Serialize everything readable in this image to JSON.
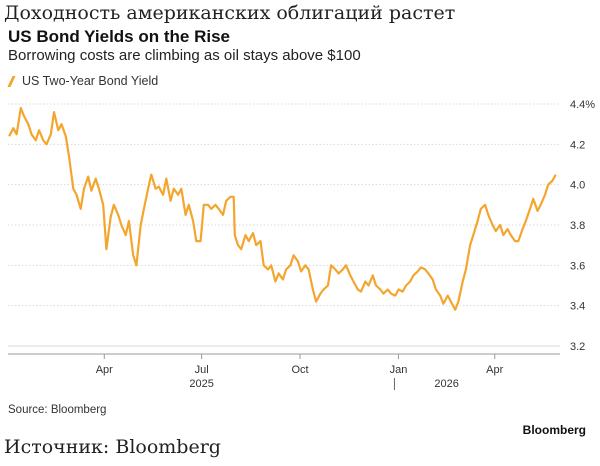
{
  "header": {
    "ru_title": "Доходность американских облигаций растет",
    "title": "US Bond Yields on the Rise",
    "subtitle": "Borrowing costs are climbing as oil stays above $100"
  },
  "footer": {
    "source": "Source: Bloomberg",
    "brand": "Bloomberg",
    "ru_source": "Источник: Bloomberg"
  },
  "colors": {
    "line": "#f4a52e",
    "grid": "#d9d9d9",
    "axis": "#999999"
  },
  "chart_data": {
    "type": "line",
    "title": "US Bond Yields on the Rise",
    "subtitle": "Borrowing costs are climbing as oil stays above $100",
    "xlabel": "",
    "ylabel": "",
    "ylim": [
      3.2,
      4.4
    ],
    "grid": true,
    "legend": "top-left",
    "y_ticks": [
      {
        "value": 4.4,
        "label": "4.4%"
      },
      {
        "value": 4.2,
        "label": "4.2"
      },
      {
        "value": 4.0,
        "label": "4.0"
      },
      {
        "value": 3.8,
        "label": "3.8"
      },
      {
        "value": 3.6,
        "label": "3.6"
      },
      {
        "value": 3.4,
        "label": "3.4"
      },
      {
        "value": 3.2,
        "label": "3.2"
      }
    ],
    "x_ticks": [
      {
        "date": "2025-04-01",
        "label": "Apr"
      },
      {
        "date": "2025-07-01",
        "label": "Jul"
      },
      {
        "date": "2025-10-01",
        "label": "Oct"
      },
      {
        "date": "2026-01-01",
        "label": "Jan"
      },
      {
        "date": "2026-04-01",
        "label": "Apr"
      }
    ],
    "year_labels": [
      {
        "date": "2025-07-01",
        "label": "2025"
      },
      {
        "date": "2026-02-15",
        "label": "2026"
      }
    ],
    "year_separator": "2026-01-01",
    "series": [
      {
        "name": "US Two-Year Bond Yield",
        "points": [
          [
            "2025-01-02",
            4.24
          ],
          [
            "2025-01-06",
            4.28
          ],
          [
            "2025-01-09",
            4.25
          ],
          [
            "2025-01-13",
            4.38
          ],
          [
            "2025-01-16",
            4.34
          ],
          [
            "2025-01-20",
            4.3
          ],
          [
            "2025-01-23",
            4.25
          ],
          [
            "2025-01-27",
            4.22
          ],
          [
            "2025-01-30",
            4.27
          ],
          [
            "2025-02-03",
            4.22
          ],
          [
            "2025-02-06",
            4.2
          ],
          [
            "2025-02-10",
            4.25
          ],
          [
            "2025-02-13",
            4.36
          ],
          [
            "2025-02-17",
            4.27
          ],
          [
            "2025-02-20",
            4.3
          ],
          [
            "2025-02-24",
            4.24
          ],
          [
            "2025-02-27",
            4.14
          ],
          [
            "2025-03-03",
            3.98
          ],
          [
            "2025-03-06",
            3.95
          ],
          [
            "2025-03-10",
            3.88
          ],
          [
            "2025-03-13",
            3.98
          ],
          [
            "2025-03-17",
            4.04
          ],
          [
            "2025-03-20",
            3.97
          ],
          [
            "2025-03-24",
            4.03
          ],
          [
            "2025-03-27",
            3.98
          ],
          [
            "2025-03-31",
            3.9
          ],
          [
            "2025-04-03",
            3.68
          ],
          [
            "2025-04-07",
            3.84
          ],
          [
            "2025-04-10",
            3.9
          ],
          [
            "2025-04-14",
            3.85
          ],
          [
            "2025-04-17",
            3.8
          ],
          [
            "2025-04-21",
            3.75
          ],
          [
            "2025-04-24",
            3.82
          ],
          [
            "2025-04-28",
            3.65
          ],
          [
            "2025-05-01",
            3.6
          ],
          [
            "2025-05-05",
            3.8
          ],
          [
            "2025-05-08",
            3.88
          ],
          [
            "2025-05-12",
            3.98
          ],
          [
            "2025-05-15",
            4.05
          ],
          [
            "2025-05-19",
            3.98
          ],
          [
            "2025-05-22",
            3.99
          ],
          [
            "2025-05-26",
            3.95
          ],
          [
            "2025-05-29",
            4.03
          ],
          [
            "2025-06-02",
            3.92
          ],
          [
            "2025-06-05",
            3.98
          ],
          [
            "2025-06-09",
            3.95
          ],
          [
            "2025-06-12",
            3.98
          ],
          [
            "2025-06-16",
            3.85
          ],
          [
            "2025-06-19",
            3.9
          ],
          [
            "2025-06-23",
            3.82
          ],
          [
            "2025-06-26",
            3.72
          ],
          [
            "2025-06-30",
            3.72
          ],
          [
            "2025-07-03",
            3.9
          ],
          [
            "2025-07-07",
            3.9
          ],
          [
            "2025-07-10",
            3.88
          ],
          [
            "2025-07-14",
            3.9
          ],
          [
            "2025-07-17",
            3.88
          ],
          [
            "2025-07-21",
            3.85
          ],
          [
            "2025-07-24",
            3.92
          ],
          [
            "2025-07-28",
            3.94
          ],
          [
            "2025-07-31",
            3.94
          ],
          [
            "2025-08-01",
            3.75
          ],
          [
            "2025-08-04",
            3.7
          ],
          [
            "2025-08-07",
            3.68
          ],
          [
            "2025-08-11",
            3.75
          ],
          [
            "2025-08-14",
            3.72
          ],
          [
            "2025-08-18",
            3.76
          ],
          [
            "2025-08-21",
            3.7
          ],
          [
            "2025-08-25",
            3.72
          ],
          [
            "2025-08-28",
            3.6
          ],
          [
            "2025-09-01",
            3.58
          ],
          [
            "2025-09-04",
            3.6
          ],
          [
            "2025-09-08",
            3.52
          ],
          [
            "2025-09-11",
            3.56
          ],
          [
            "2025-09-15",
            3.53
          ],
          [
            "2025-09-18",
            3.58
          ],
          [
            "2025-09-22",
            3.6
          ],
          [
            "2025-09-25",
            3.65
          ],
          [
            "2025-09-29",
            3.62
          ],
          [
            "2025-10-02",
            3.57
          ],
          [
            "2025-10-06",
            3.6
          ],
          [
            "2025-10-09",
            3.58
          ],
          [
            "2025-10-13",
            3.48
          ],
          [
            "2025-10-16",
            3.42
          ],
          [
            "2025-10-20",
            3.46
          ],
          [
            "2025-10-23",
            3.48
          ],
          [
            "2025-10-27",
            3.5
          ],
          [
            "2025-10-30",
            3.6
          ],
          [
            "2025-11-03",
            3.58
          ],
          [
            "2025-11-06",
            3.56
          ],
          [
            "2025-11-10",
            3.58
          ],
          [
            "2025-11-13",
            3.6
          ],
          [
            "2025-11-17",
            3.55
          ],
          [
            "2025-11-20",
            3.52
          ],
          [
            "2025-11-24",
            3.48
          ],
          [
            "2025-11-27",
            3.47
          ],
          [
            "2025-12-01",
            3.52
          ],
          [
            "2025-12-04",
            3.5
          ],
          [
            "2025-12-08",
            3.55
          ],
          [
            "2025-12-11",
            3.5
          ],
          [
            "2025-12-15",
            3.48
          ],
          [
            "2025-12-18",
            3.46
          ],
          [
            "2025-12-22",
            3.48
          ],
          [
            "2025-12-25",
            3.46
          ],
          [
            "2025-12-29",
            3.45
          ],
          [
            "2026-01-01",
            3.48
          ],
          [
            "2026-01-05",
            3.47
          ],
          [
            "2026-01-08",
            3.5
          ],
          [
            "2026-01-12",
            3.52
          ],
          [
            "2026-01-15",
            3.55
          ],
          [
            "2026-01-19",
            3.57
          ],
          [
            "2026-01-22",
            3.59
          ],
          [
            "2026-01-26",
            3.58
          ],
          [
            "2026-01-29",
            3.56
          ],
          [
            "2026-02-02",
            3.53
          ],
          [
            "2026-02-05",
            3.48
          ],
          [
            "2026-02-09",
            3.45
          ],
          [
            "2026-02-12",
            3.41
          ],
          [
            "2026-02-16",
            3.45
          ],
          [
            "2026-02-19",
            3.42
          ],
          [
            "2026-02-23",
            3.38
          ],
          [
            "2026-02-26",
            3.42
          ],
          [
            "2026-03-02",
            3.52
          ],
          [
            "2026-03-05",
            3.58
          ],
          [
            "2026-03-09",
            3.7
          ],
          [
            "2026-03-12",
            3.75
          ],
          [
            "2026-03-16",
            3.82
          ],
          [
            "2026-03-19",
            3.88
          ],
          [
            "2026-03-23",
            3.9
          ],
          [
            "2026-03-26",
            3.85
          ],
          [
            "2026-03-30",
            3.8
          ],
          [
            "2026-04-02",
            3.77
          ],
          [
            "2026-04-06",
            3.8
          ],
          [
            "2026-04-09",
            3.75
          ],
          [
            "2026-04-13",
            3.78
          ],
          [
            "2026-04-16",
            3.75
          ],
          [
            "2026-04-20",
            3.72
          ],
          [
            "2026-04-23",
            3.72
          ],
          [
            "2026-04-27",
            3.78
          ],
          [
            "2026-04-30",
            3.82
          ],
          [
            "2026-05-04",
            3.88
          ],
          [
            "2026-05-07",
            3.93
          ],
          [
            "2026-05-11",
            3.87
          ],
          [
            "2026-05-14",
            3.9
          ],
          [
            "2026-05-18",
            3.95
          ],
          [
            "2026-05-21",
            4.0
          ],
          [
            "2026-05-25",
            4.02
          ],
          [
            "2026-05-28",
            4.05
          ]
        ]
      }
    ]
  }
}
